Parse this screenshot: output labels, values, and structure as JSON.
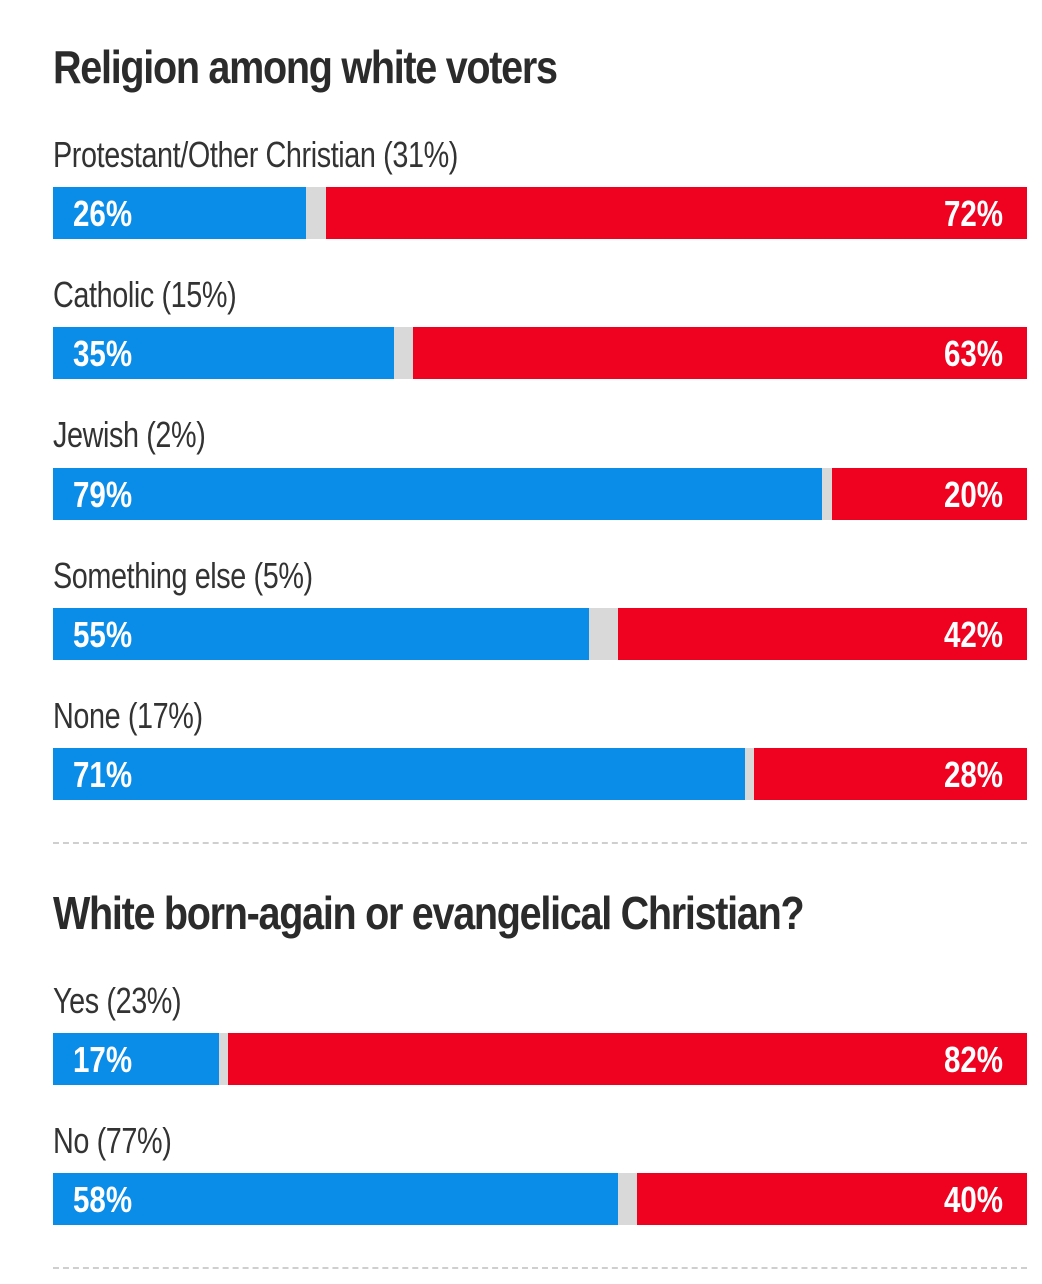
{
  "colors": {
    "dem": "#0a8ce9",
    "rep": "#ee0220",
    "other": "#d9d9d9",
    "text": "#2b2b2b"
  },
  "chart_data": [
    {
      "type": "bar",
      "orientation": "horizontal-stacked",
      "title": "Religion among white voters",
      "categories": [
        "Protestant/Other Christian (31%)",
        "Catholic (15%)",
        "Jewish (2%)",
        "Something else (5%)",
        "None (17%)"
      ],
      "series": [
        {
          "name": "blue",
          "values": [
            26,
            35,
            79,
            55,
            71
          ],
          "labels": [
            "26%",
            "35%",
            "79%",
            "55%",
            "71%"
          ]
        },
        {
          "name": "red",
          "values": [
            72,
            63,
            20,
            42,
            28
          ],
          "labels": [
            "72%",
            "63%",
            "20%",
            "42%",
            "28%"
          ]
        }
      ],
      "xlim": [
        0,
        100
      ]
    },
    {
      "type": "bar",
      "orientation": "horizontal-stacked",
      "title": "White born-again or evangelical Christian?",
      "categories": [
        "Yes (23%)",
        "No (77%)"
      ],
      "series": [
        {
          "name": "blue",
          "values": [
            17,
            58
          ],
          "labels": [
            "17%",
            "58%"
          ]
        },
        {
          "name": "red",
          "values": [
            82,
            40
          ],
          "labels": [
            "82%",
            "40%"
          ]
        }
      ],
      "xlim": [
        0,
        100
      ]
    }
  ]
}
